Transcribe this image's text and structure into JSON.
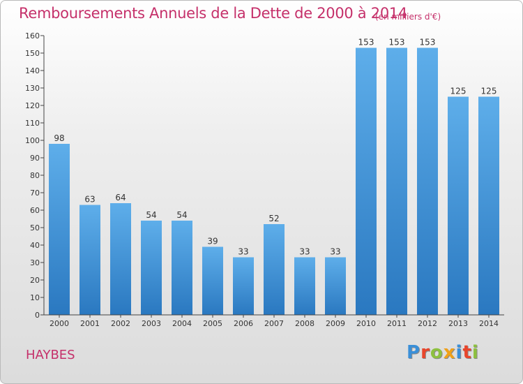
{
  "header": {
    "title": "Remboursements Annuels de la Dette de 2000 à 2014",
    "unit": "(en milliers d'€)"
  },
  "footer": {
    "city": "HAYBES",
    "logo_letters": [
      "P",
      "r",
      "o",
      "x",
      "i",
      "t",
      "i"
    ],
    "logo_colors": [
      "#3a8fd8",
      "#e8452b",
      "#8dc03f",
      "#f0a018",
      "#3a8fd8",
      "#e8452b",
      "#8dc03f"
    ]
  },
  "chart_data": {
    "type": "bar",
    "categories": [
      "2000",
      "2001",
      "2002",
      "2003",
      "2004",
      "2005",
      "2006",
      "2007",
      "2008",
      "2009",
      "2010",
      "2011",
      "2012",
      "2013",
      "2014"
    ],
    "values": [
      98,
      63,
      64,
      54,
      54,
      39,
      33,
      52,
      33,
      33,
      153,
      153,
      153,
      125,
      125
    ],
    "ylim": [
      0,
      160
    ],
    "yticks": [
      0,
      10,
      20,
      30,
      40,
      50,
      60,
      70,
      80,
      90,
      100,
      110,
      120,
      130,
      140,
      150,
      160
    ],
    "grid": false,
    "colors": {
      "bar_light": "#5eaeea",
      "bar_dark": "#2a78c0",
      "axis": "#444444"
    }
  }
}
